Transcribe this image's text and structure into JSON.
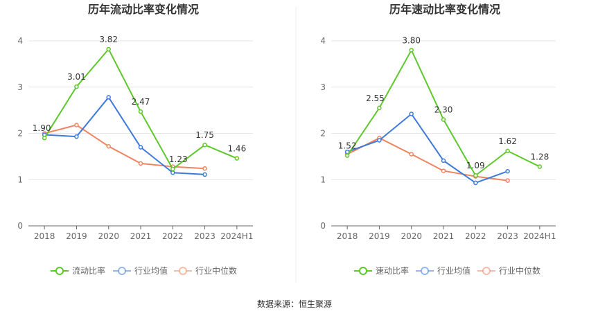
{
  "source_label": "数据来源：恒生聚源",
  "chart_data": [
    {
      "type": "line",
      "title": "历年流动比率变化情况",
      "categories": [
        "2018",
        "2019",
        "2020",
        "2021",
        "2022",
        "2023",
        "2024H1"
      ],
      "ylim": [
        0,
        4
      ],
      "yticks": [
        0,
        1,
        2,
        3,
        4
      ],
      "grid": true,
      "legend_position": "bottom",
      "series": [
        {
          "name": "流动比率",
          "color": "#5cc82a",
          "labeled": true,
          "values": [
            1.9,
            3.01,
            3.82,
            2.47,
            1.23,
            1.75,
            1.46
          ]
        },
        {
          "name": "行业均值",
          "color": "#3d7ad9",
          "labeled": false,
          "values": [
            1.97,
            1.93,
            2.78,
            1.7,
            1.15,
            1.11,
            null
          ]
        },
        {
          "name": "行业中位数",
          "color": "#f0845e",
          "labeled": false,
          "values": [
            2.0,
            2.18,
            1.72,
            1.35,
            1.28,
            1.24,
            null
          ]
        }
      ]
    },
    {
      "type": "line",
      "title": "历年速动比率变化情况",
      "categories": [
        "2018",
        "2019",
        "2020",
        "2021",
        "2022",
        "2023",
        "2024H1"
      ],
      "ylim": [
        0,
        4
      ],
      "yticks": [
        0,
        1,
        2,
        3,
        4
      ],
      "grid": true,
      "legend_position": "bottom",
      "series": [
        {
          "name": "速动比率",
          "color": "#5cc82a",
          "labeled": true,
          "values": [
            1.52,
            2.55,
            3.8,
            2.3,
            1.09,
            1.62,
            1.28
          ]
        },
        {
          "name": "行业均值",
          "color": "#3d7ad9",
          "labeled": false,
          "values": [
            1.6,
            1.85,
            2.42,
            1.41,
            0.93,
            1.18,
            null
          ]
        },
        {
          "name": "行业中位数",
          "color": "#f0845e",
          "labeled": false,
          "values": [
            1.55,
            1.9,
            1.55,
            1.19,
            1.07,
            0.98,
            null
          ]
        }
      ]
    }
  ]
}
